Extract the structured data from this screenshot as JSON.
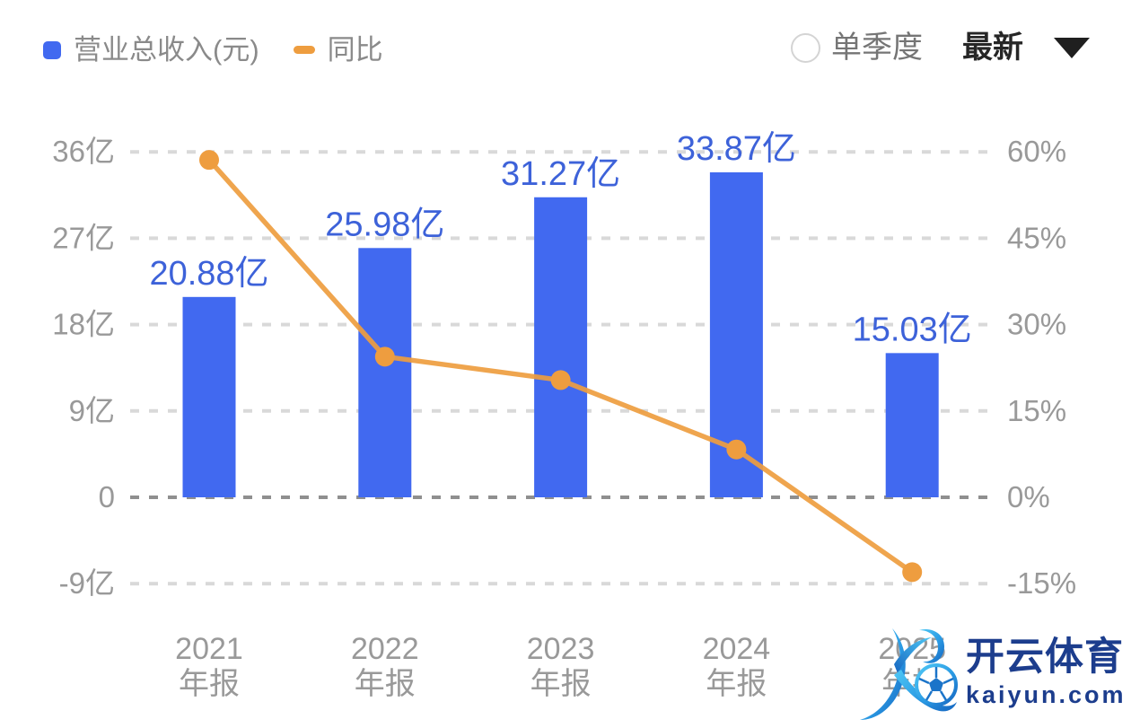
{
  "legend": {
    "revenue": {
      "label": "营业总收入(元)",
      "color": "#4169F0"
    },
    "yoy": {
      "label": "同比",
      "color": "#EE9D3F"
    }
  },
  "controls": {
    "quarter_label": "单季度",
    "quarter_selected": false,
    "period_value": "最新"
  },
  "chart_data": {
    "type": "bar+line combo",
    "categories": [
      "2021年报",
      "2022年报",
      "2023年报",
      "2024年报",
      "2025年报"
    ],
    "category_lines": [
      [
        "2021",
        "年报"
      ],
      [
        "2022",
        "年报"
      ],
      [
        "2023",
        "年报"
      ],
      [
        "2024",
        "年报"
      ],
      [
        "2025",
        "年报"
      ]
    ],
    "series": [
      {
        "name": "营业总收入(元)",
        "type": "bar",
        "axis": "left",
        "unit": "亿",
        "values": [
          20.88,
          25.98,
          31.27,
          33.87,
          15.03
        ],
        "labels": [
          "20.88亿",
          "25.98亿",
          "31.27亿",
          "33.87亿",
          "15.03亿"
        ],
        "color": "#4169F0",
        "label_color": "#3D62D9"
      },
      {
        "name": "同比",
        "type": "line",
        "axis": "right",
        "unit": "%",
        "values": [
          58.6,
          24.43,
          20.36,
          8.31,
          -13.0
        ],
        "color": "#EE9D3F"
      }
    ],
    "left_axis": {
      "tick_labels": [
        "36亿",
        "27亿",
        "18亿",
        "9亿",
        "0",
        "-9亿"
      ],
      "tick_values": [
        36,
        27,
        18,
        9,
        0,
        -9
      ],
      "range": [
        -9,
        36
      ]
    },
    "right_axis": {
      "tick_labels": [
        "60%",
        "45%",
        "30%",
        "15%",
        "0%",
        "-15%"
      ],
      "tick_values": [
        60,
        45,
        30,
        15,
        0,
        -15
      ],
      "range": [
        -15,
        60
      ]
    },
    "grid": "dashed horizontal, zero line darker",
    "legend_position": "top-left"
  },
  "watermark": {
    "brand": "开云体育",
    "domain": "kaiyun.com",
    "logo": "kaiyun-k-soccer-logo",
    "color": "#1C3D8D"
  }
}
